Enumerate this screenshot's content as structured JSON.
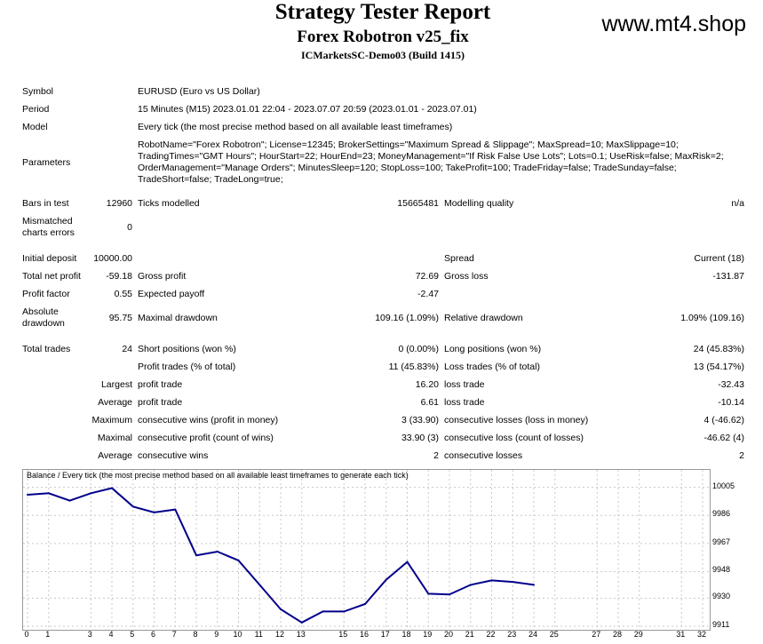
{
  "header": {
    "title": "Strategy Tester Report",
    "subtitle": "Forex Robotron v25_fix",
    "account": "ICMarketsSC-Demo03 (Build 1415)",
    "site": "www.mt4.shop"
  },
  "info": {
    "symbol_label": "Symbol",
    "symbol_value": "EURUSD (Euro vs US Dollar)",
    "period_label": "Period",
    "period_value": "15 Minutes (M15) 2023.01.01 22:04 - 2023.07.07 20:59 (2023.01.01 - 2023.07.01)",
    "model_label": "Model",
    "model_value": "Every tick (the most precise method based on all available least timeframes)",
    "parameters_label": "Parameters",
    "parameters_value": "RobotName=\"Forex Robotron\"; License=12345; BrokerSettings=\"Maximum Spread & Slippage\"; MaxSpread=10; MaxSlippage=10; TradingTimes=\"GMT Hours\"; HourStart=22; HourEnd=23; MoneyManagement=\"If Risk False Use Lots\"; Lots=0.1; UseRisk=false; MaxRisk=2; OrderManagement=\"Manage Orders\"; MinutesSleep=120; StopLoss=100; TakeProfit=100; TradeFriday=false; TradeSunday=false; TradeShort=false; TradeLong=true;"
  },
  "stats": {
    "bars_label": "Bars in test",
    "bars_value": "12960",
    "ticks_label": "Ticks modelled",
    "ticks_value": "15665481",
    "quality_label": "Modelling quality",
    "quality_value": "n/a",
    "mismatch_label_1": "Mismatched",
    "mismatch_label_2": "charts errors",
    "mismatch_value": "0",
    "deposit_label": "Initial deposit",
    "deposit_value": "10000.00",
    "spread_label": "Spread",
    "spread_value": "Current (18)",
    "net_label": "Total net profit",
    "net_value": "-59.18",
    "gross_profit_label": "Gross profit",
    "gross_profit_value": "72.69",
    "gross_loss_label": "Gross loss",
    "gross_loss_value": "-131.87",
    "pf_label": "Profit factor",
    "pf_value": "0.55",
    "payoff_label": "Expected payoff",
    "payoff_value": "-2.47",
    "abs_dd_label_1": "Absolute",
    "abs_dd_label_2": "drawdown",
    "abs_dd_value": "95.75",
    "max_dd_label": "Maximal drawdown",
    "max_dd_value": "109.16 (1.09%)",
    "rel_dd_label": "Relative drawdown",
    "rel_dd_value": "1.09% (109.16)",
    "trades_label": "Total trades",
    "trades_value": "24",
    "short_label": "Short positions (won %)",
    "short_value": "0 (0.00%)",
    "long_label": "Long positions (won %)",
    "long_value": "24 (45.83%)",
    "profit_trades_label": "Profit trades (% of total)",
    "profit_trades_value": "11 (45.83%)",
    "loss_trades_label": "Loss trades (% of total)",
    "loss_trades_value": "13 (54.17%)",
    "largest_label": "Largest",
    "largest_profit_label": "profit trade",
    "largest_profit_value": "16.20",
    "largest_loss_label": "loss trade",
    "largest_loss_value": "-32.43",
    "average_label": "Average",
    "avg_profit_label": "profit trade",
    "avg_profit_value": "6.61",
    "avg_loss_label": "loss trade",
    "avg_loss_value": "-10.14",
    "maximum_label": "Maximum",
    "max_wins_label": "consecutive wins (profit in money)",
    "max_wins_value": "3 (33.90)",
    "max_losses_label": "consecutive losses (loss in money)",
    "max_losses_value": "4 (-46.62)",
    "maximal_label": "Maximal",
    "maximal_profit_label": "consecutive profit (count of wins)",
    "maximal_profit_value": "33.90 (3)",
    "maximal_loss_label": "consecutive loss (count of losses)",
    "maximal_loss_value": "-46.62 (4)",
    "avg2_label": "Average",
    "avg_wins_label": "consecutive wins",
    "avg_wins_value": "2",
    "avg_losses_label": "consecutive losses",
    "avg_losses_value": "2"
  },
  "chart_data": {
    "type": "line",
    "title": "Balance / Every tick (the most precise method based on all available least timeframes to generate each tick)",
    "line_color": "#00008b",
    "x": [
      0,
      1,
      2,
      3,
      4,
      5,
      6,
      7,
      8,
      9,
      10,
      11,
      12,
      13,
      14,
      15,
      16,
      17,
      18,
      19,
      20,
      21,
      22,
      23,
      24
    ],
    "series": [
      {
        "values": [
          10000.0,
          10001.0,
          9996.0,
          10001.0,
          10004.5,
          9992.0,
          9988.0,
          9990.0,
          9959.0,
          9961.5,
          9955.5,
          9939.0,
          9922.5,
          9913.5,
          9921.0,
          9921.0,
          9926.0,
          9942.5,
          9954.5,
          9933.0,
          9932.5,
          9939.0,
          9942.0,
          9941.0,
          9939.0
        ]
      }
    ],
    "xlim": [
      0,
      32
    ],
    "ylim": [
      9911,
      10012
    ],
    "yticks": [
      "10005",
      "9986",
      "9967",
      "9948",
      "9930",
      "9911"
    ],
    "ytick_values": [
      10005,
      9986,
      9967,
      9948,
      9930,
      9911
    ],
    "xticks": [
      "0",
      "1",
      "3",
      "4",
      "5",
      "6",
      "7",
      "8",
      "9",
      "10",
      "11",
      "12",
      "13",
      "15",
      "16",
      "17",
      "18",
      "19",
      "20",
      "21",
      "22",
      "23",
      "24",
      "25",
      "27",
      "28",
      "29",
      "31",
      "32"
    ],
    "xtick_values": [
      0,
      1,
      3,
      4,
      5,
      6,
      7,
      8,
      9,
      10,
      11,
      12,
      13,
      15,
      16,
      17,
      18,
      19,
      20,
      21,
      22,
      23,
      24,
      25,
      27,
      28,
      29,
      31,
      32
    ],
    "grid": true
  }
}
